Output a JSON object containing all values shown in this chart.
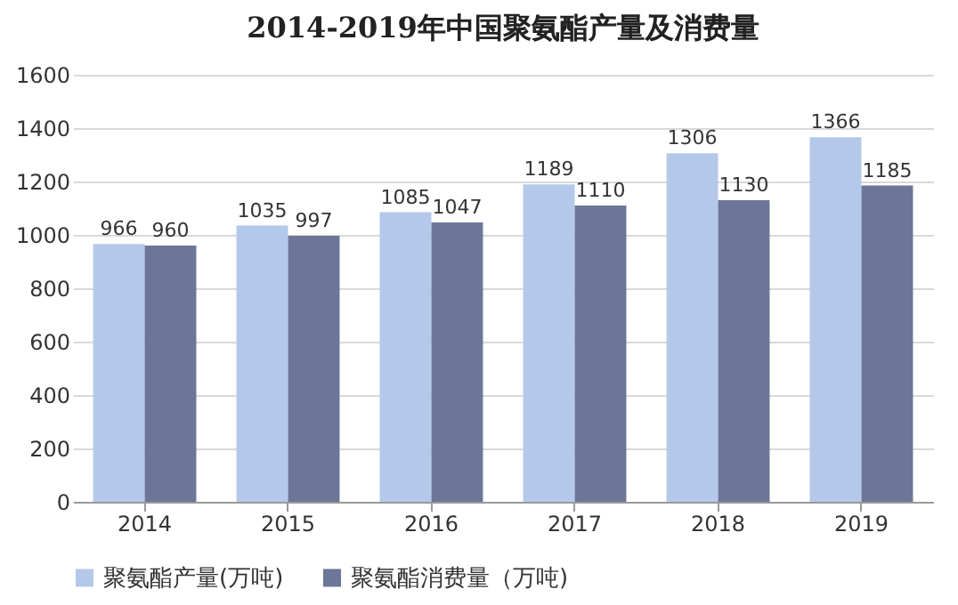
{
  "chart_data": {
    "type": "bar",
    "title": "2014-2019年中国聚氨酯产量及消费量",
    "categories": [
      "2014",
      "2015",
      "2016",
      "2017",
      "2018",
      "2019"
    ],
    "series": [
      {
        "name": "聚氨酯产量(万吨)",
        "color": "#b4c9ea",
        "values": [
          966,
          1035,
          1085,
          1189,
          1306,
          1366
        ]
      },
      {
        "name": "聚氨酯消费量（万吨)",
        "color": "#6b7699",
        "values": [
          960,
          997,
          1047,
          1110,
          1130,
          1185
        ]
      }
    ],
    "ylim": [
      0,
      1600
    ],
    "yticks": [
      0,
      200,
      400,
      600,
      800,
      1000,
      1200,
      1400,
      1600
    ],
    "grid": "y",
    "legend": "bottom",
    "data_labels": true
  }
}
